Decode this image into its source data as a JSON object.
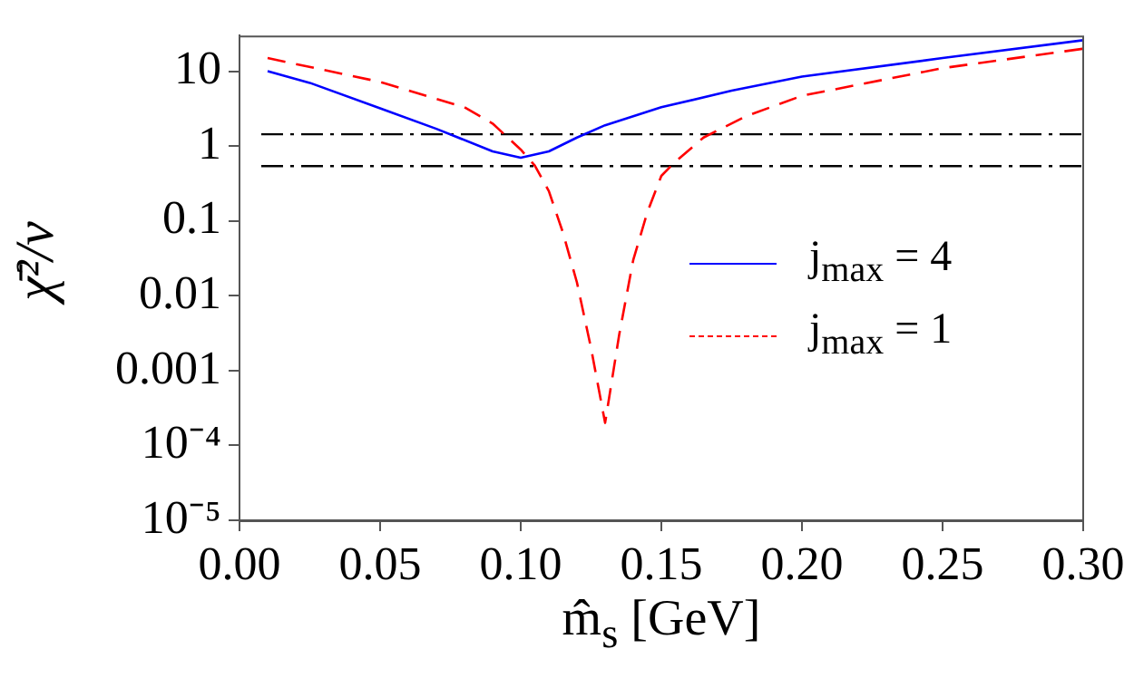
{
  "chart_data": {
    "type": "line",
    "xlabel": "m̂$_{s}$ [GeV]",
    "ylabel": "χ̄²/ν",
    "xlim": [
      0,
      0.3
    ],
    "xticks": [
      {
        "value": 0,
        "label": "0.00"
      },
      {
        "value": 0.05,
        "label": "0.05"
      },
      {
        "value": 0.1,
        "label": "0.10"
      },
      {
        "value": 0.15,
        "label": "0.15"
      },
      {
        "value": 0.2,
        "label": "0.20"
      },
      {
        "value": 0.25,
        "label": "0.25"
      },
      {
        "value": 0.3,
        "label": "0.30"
      }
    ],
    "ylim": [
      1e-05,
      30
    ],
    "log": "y",
    "yticks": [
      {
        "value": 1e-05,
        "label": "10⁻⁵"
      },
      {
        "value": 0.0001,
        "label": "10⁻⁴"
      },
      0.001,
      0.01,
      0.1,
      1,
      10
    ],
    "grid": false,
    "legend": "right",
    "marker": "none",
    "series": [
      {
        "name": "j$_{max}$ = 4",
        "color": "#0000ff",
        "line_style": "solid",
        "x": [
          0.01,
          0.025,
          0.05,
          0.07,
          0.09,
          0.1,
          0.11,
          0.12,
          0.13,
          0.15,
          0.175,
          0.2,
          0.25,
          0.3
        ],
        "values": [
          10,
          7,
          3.2,
          1.7,
          0.85,
          0.7,
          0.85,
          1.3,
          1.9,
          3.3,
          5.5,
          8.5,
          15,
          26
        ]
      },
      {
        "name": "j$_{max}$ = 1",
        "color": "#ff0000",
        "line_style": "dashed",
        "x": [
          0.01,
          0.05,
          0.08,
          0.09,
          0.1,
          0.105,
          0.11,
          0.115,
          0.12,
          0.125,
          0.13,
          0.135,
          0.14,
          0.145,
          0.15,
          0.155,
          0.165,
          0.18,
          0.2,
          0.25,
          0.3
        ],
        "values": [
          15,
          7.2,
          3.3,
          2,
          0.9,
          0.55,
          0.25,
          0.07,
          0.015,
          0.002,
          0.0002,
          0.003,
          0.03,
          0.13,
          0.4,
          0.62,
          1.3,
          2.5,
          4.7,
          11,
          20
        ]
      }
    ],
    "ref_lines": [
      {
        "axis": "y",
        "value": 1.44,
        "color": "#000000"
      },
      {
        "axis": "y",
        "value": 0.54,
        "color": "#000000"
      }
    ]
  }
}
